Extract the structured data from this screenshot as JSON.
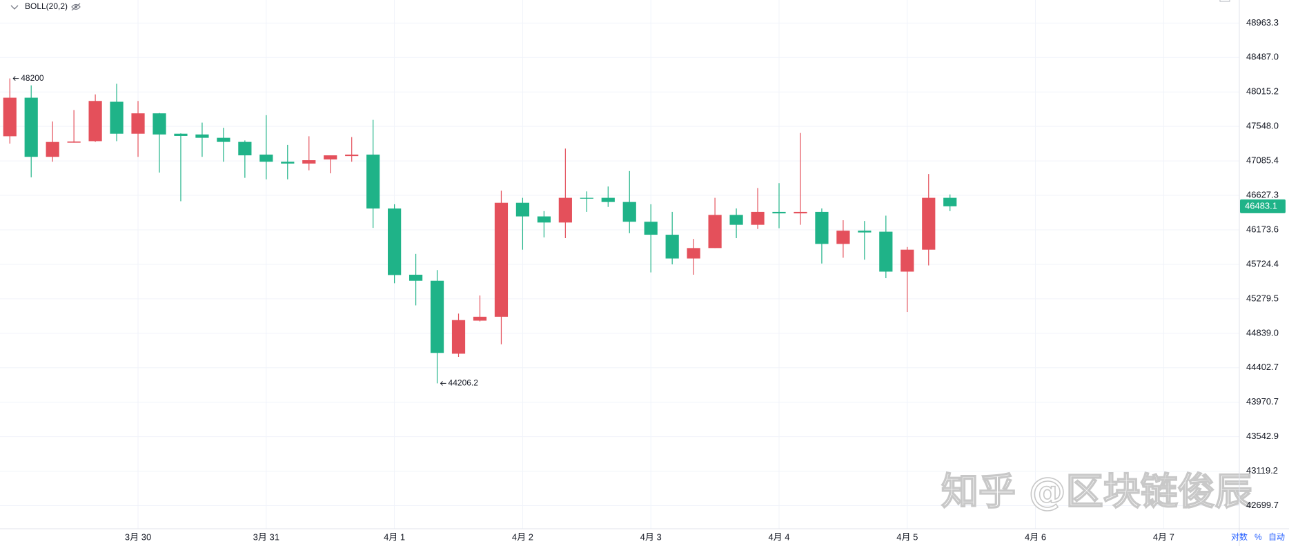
{
  "chart_data": {
    "type": "candlestick",
    "indicator_label": "BOLL(20,2)",
    "watermark": "知乎 @区块链俊辰",
    "scale_buttons": [
      "对数",
      "%",
      "自动"
    ],
    "up_color": "#e4505b",
    "down_color": "#1fb388",
    "grid": true,
    "log": true,
    "mark_extremes": true,
    "last_price_label": true,
    "categories": [
      null,
      null,
      null,
      null,
      null,
      null,
      null,
      null,
      null,
      null,
      null,
      null,
      null,
      null,
      null,
      null,
      null,
      null,
      null,
      null,
      null,
      null,
      null,
      null,
      null,
      null,
      null,
      null,
      null,
      null,
      null,
      null,
      null,
      null,
      null,
      null,
      null,
      null,
      null,
      null,
      null,
      null,
      null,
      null,
      null
    ],
    "open": [
      47416,
      47937,
      47140,
      47330,
      47350,
      47882,
      47450,
      47725,
      47450,
      47440,
      47395,
      47340,
      47170,
      47074,
      47050,
      47105,
      47150,
      47170,
      46454,
      45590,
      45512,
      44580,
      45000,
      45050,
      46530,
      46350,
      46270,
      46595,
      46595,
      46540,
      46280,
      46110,
      45800,
      45936,
      46370,
      46240,
      46410,
      46390,
      46410,
      45990,
      46163,
      46150,
      45630,
      45915,
      46595
    ],
    "high": [
      48200,
      48105,
      47615,
      47770,
      47982,
      48127,
      47893,
      47730,
      47455,
      47600,
      47530,
      47360,
      47700,
      47300,
      47416,
      47160,
      47405,
      47637,
      46510,
      45860,
      45650,
      45090,
      45322,
      46690,
      46595,
      46420,
      47250,
      46680,
      46745,
      46950,
      46510,
      46410,
      46055,
      46595,
      46455,
      46725,
      46790,
      47460,
      46455,
      46300,
      46290,
      46360,
      45950,
      46910,
      46640
    ],
    "low": [
      47317,
      46867,
      47074,
      47330,
      47340,
      47350,
      47140,
      46930,
      46550,
      47140,
      47074,
      46860,
      46840,
      46840,
      46960,
      46920,
      47074,
      46200,
      45480,
      45195,
      44206.2,
      44540,
      44990,
      44700,
      45915,
      46075,
      46065,
      46410,
      46475,
      46130,
      45620,
      45724,
      45590,
      45936,
      46065,
      46185,
      46195,
      46240,
      45735,
      45810,
      45785,
      45545,
      45110,
      45710,
      46420
    ],
    "close": [
      47937,
      47140,
      47339,
      47345,
      47893,
      47450,
      47725,
      47440,
      47420,
      47395,
      47340,
      47160,
      47074,
      47050,
      47095,
      47160,
      47170,
      46454,
      45586,
      45512,
      44590,
      45007,
      45050,
      46530,
      46350,
      46270,
      46595,
      46585,
      46540,
      46280,
      46110,
      45800,
      45936,
      46370,
      46240,
      46410,
      46390,
      46410,
      45990,
      46163,
      46140,
      45630,
      45915,
      46595,
      46483.1
    ],
    "xlim": [
      -0.46,
      57.54
    ],
    "xticks": [
      {
        "value": 6,
        "label": "3月 30"
      },
      {
        "value": 12,
        "label": "3月 31"
      },
      {
        "value": 18,
        "label": "4月 1"
      },
      {
        "value": 24,
        "label": "4月 2"
      },
      {
        "value": 30,
        "label": "4月 3"
      },
      {
        "value": 36,
        "label": "4月 4"
      },
      {
        "value": 42,
        "label": "4月 5"
      },
      {
        "value": 48,
        "label": "4月 6"
      },
      {
        "value": 54,
        "label": "4月 7"
      }
    ],
    "ylim": [
      42421,
      49284
    ],
    "yticks": [
      48963.3,
      {
        "value": 48487,
        "label": "48487.0"
      },
      48015.2,
      {
        "value": 47548,
        "label": "47548.0"
      },
      47085.4,
      46627.3,
      46173.6,
      45724.4,
      45279.5,
      {
        "value": 44839,
        "label": "44839.0"
      },
      44402.7,
      43970.7,
      43542.9,
      43119.2,
      42699.7
    ]
  }
}
